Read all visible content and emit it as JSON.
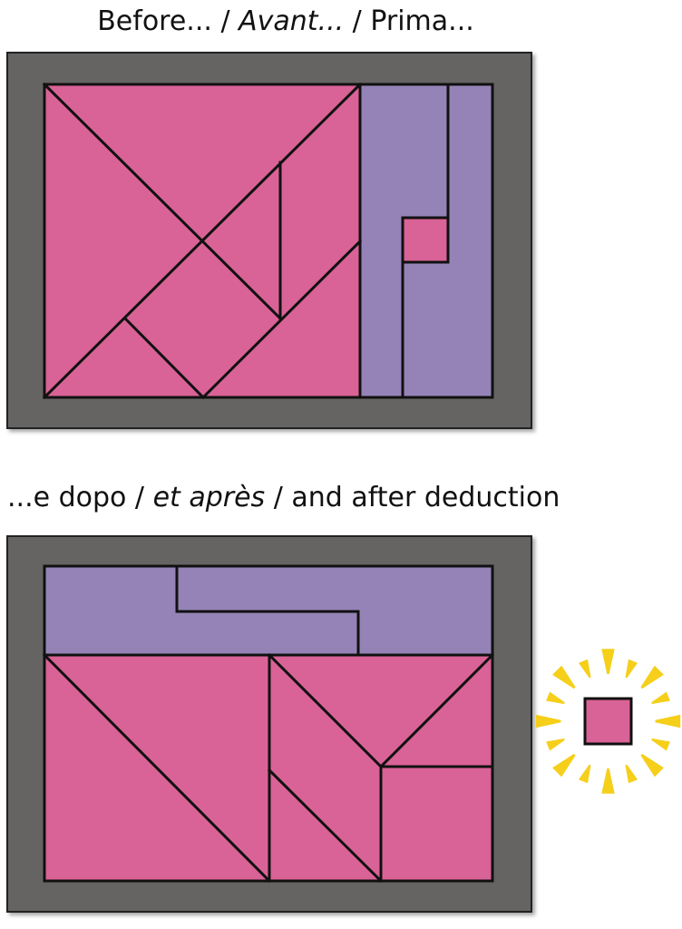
{
  "captions": {
    "before": {
      "part1": "Before... / ",
      "part2": "Avant...",
      "part3": " / Prima..."
    },
    "after": {
      "part1": "...e dopo / ",
      "part2": "et après",
      "part3": " / and after deduction"
    }
  },
  "colors": {
    "frame": "#666464",
    "pink": "#d96296",
    "purple": "#9583b7",
    "outline": "#111111",
    "sparkle": "#f5cf1a",
    "background": "#ffffff"
  },
  "icons": {
    "extra_square": "pink-square-icon",
    "sparkle": "sunburst-icon"
  }
}
